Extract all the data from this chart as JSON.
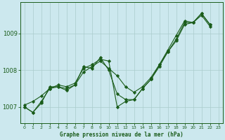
{
  "title": "Graphe pression niveau de la mer (hPa)",
  "background_color": "#cce8ee",
  "grid_color": "#aacccc",
  "line_color": "#1a5c1a",
  "xlim": [
    -0.5,
    23.5
  ],
  "ylim": [
    1006.55,
    1009.85
  ],
  "yticks": [
    1007,
    1008,
    1009
  ],
  "xticks": [
    0,
    1,
    2,
    3,
    4,
    5,
    6,
    7,
    8,
    9,
    10,
    11,
    12,
    13,
    14,
    15,
    16,
    17,
    18,
    19,
    20,
    21,
    22,
    23
  ],
  "series_x": [
    [
      0,
      1,
      2,
      3,
      4,
      5,
      6,
      7,
      8,
      9,
      10,
      11,
      12,
      13,
      14,
      15,
      16,
      17,
      18,
      19,
      20,
      21,
      22
    ],
    [
      0,
      1,
      2,
      3,
      4,
      5,
      6,
      7,
      8,
      9,
      10,
      11,
      12,
      13,
      14,
      15,
      16,
      17,
      18,
      19,
      20,
      21,
      22
    ],
    [
      0,
      1,
      2,
      3,
      4,
      5,
      6,
      7,
      8,
      9,
      10,
      11,
      12,
      13,
      14,
      15,
      16,
      17,
      18,
      19,
      20,
      21,
      22
    ]
  ],
  "series_y": [
    [
      1007.0,
      1006.85,
      1007.1,
      1007.55,
      1007.55,
      1007.45,
      1007.6,
      1008.1,
      1008.05,
      1008.35,
      1008.0,
      1007.35,
      1007.2,
      1007.2,
      1007.5,
      1007.75,
      1008.1,
      1008.5,
      1008.85,
      1009.3,
      1009.3,
      1009.55,
      1009.25
    ],
    [
      1007.0,
      1006.85,
      1007.15,
      1007.5,
      1007.6,
      1007.55,
      1007.65,
      1008.05,
      1008.15,
      1008.3,
      1008.25,
      1007.0,
      1007.15,
      1007.2,
      1007.5,
      1007.75,
      1008.15,
      1008.55,
      1008.95,
      1009.35,
      1009.3,
      1009.55,
      1009.25
    ],
    [
      1007.05,
      1007.15,
      1007.3,
      1007.5,
      1007.55,
      1007.5,
      1007.6,
      1007.95,
      1008.1,
      1008.25,
      1008.05,
      1007.85,
      1007.55,
      1007.4,
      1007.55,
      1007.8,
      1008.15,
      1008.5,
      1008.8,
      1009.25,
      1009.3,
      1009.5,
      1009.2
    ]
  ],
  "marker": "D",
  "markersize": 2.2,
  "linewidth": 0.8,
  "xlabel_fontsize": 5.5,
  "ytick_fontsize": 6,
  "xtick_fontsize": 4.5
}
